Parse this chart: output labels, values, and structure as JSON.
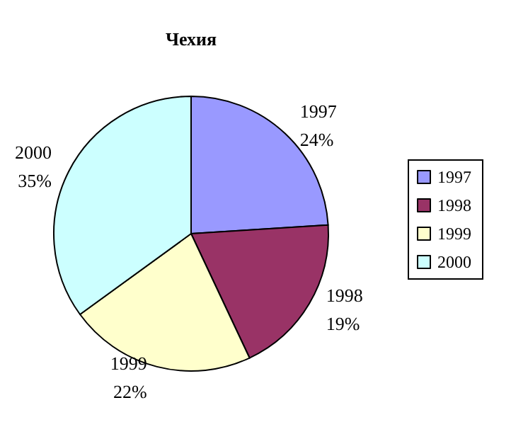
{
  "chart_data": {
    "type": "pie",
    "title": "Чехия",
    "categories": [
      "1997",
      "1998",
      "1999",
      "2000"
    ],
    "values": [
      24,
      19,
      22,
      35
    ],
    "colors": [
      "#9999ff",
      "#993366",
      "#ffffcc",
      "#ccffff"
    ],
    "value_labels": [
      "24%",
      "19%",
      "22%",
      "35%"
    ],
    "legend": "right"
  }
}
